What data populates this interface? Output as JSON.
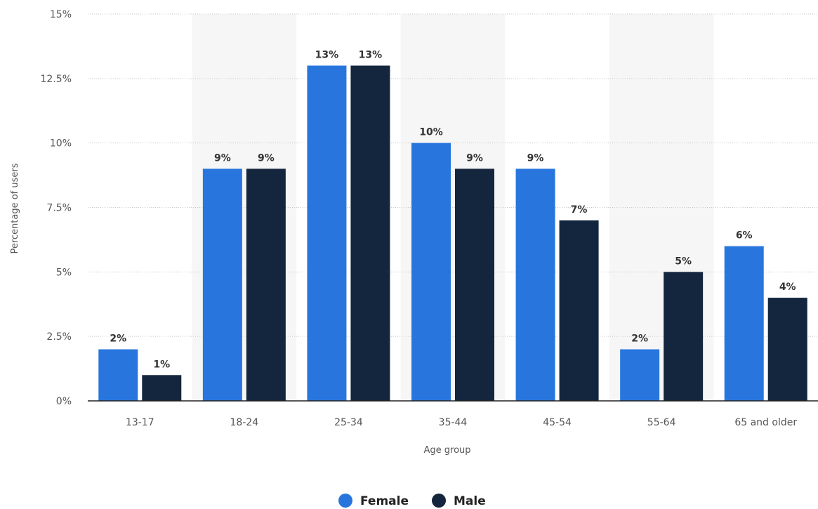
{
  "chart_data": {
    "type": "bar",
    "categories": [
      "13-17",
      "18-24",
      "25-34",
      "35-44",
      "45-54",
      "55-64",
      "65 and older"
    ],
    "series": [
      {
        "name": "Female",
        "values": [
          2,
          9,
          13,
          10,
          9,
          2,
          6
        ],
        "color": "#2876dd"
      },
      {
        "name": "Male",
        "values": [
          1,
          9,
          13,
          9,
          7,
          5,
          4
        ],
        "color": "#14263d"
      }
    ],
    "data_labels": {
      "Female": [
        "2%",
        "9%",
        "13%",
        "10%",
        "9%",
        "2%",
        "6%"
      ],
      "Male": [
        "1%",
        "9%",
        "13%",
        "9%",
        "7%",
        "5%",
        "4%"
      ]
    },
    "title": "",
    "xlabel": "Age group",
    "ylabel": "Percentage of users",
    "ylim": [
      0,
      15
    ],
    "yticks": [
      0,
      2.5,
      5,
      7.5,
      10,
      12.5,
      15
    ],
    "ytick_labels": [
      "0%",
      "2.5%",
      "5%",
      "7.5%",
      "10%",
      "12.5%",
      "15%"
    ],
    "grid": true,
    "legend_position": "bottom-center"
  },
  "colors": {
    "female": "#2876dd",
    "male": "#14263d",
    "grid": "#c9c9c9",
    "band": "#f6f6f6",
    "axis": "#222222"
  }
}
